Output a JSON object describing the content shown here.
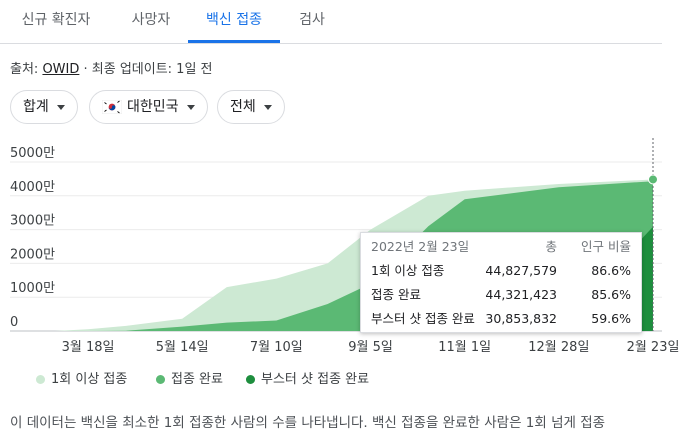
{
  "tabs": [
    {
      "label": "신규 확진자"
    },
    {
      "label": "사망자"
    },
    {
      "label": "백신 접종"
    },
    {
      "label": "검사"
    }
  ],
  "source": {
    "prefix": "출처: ",
    "name": "OWID",
    "suffix": " · 최종 업데이트: 1일 전"
  },
  "filters": {
    "measure": "합계",
    "country": "대한민국",
    "range": "전체"
  },
  "colors": {
    "first_dose": "#cde9d3",
    "fully": "#5bb974",
    "booster": "#1e8e3e",
    "accent": "#1a73e8"
  },
  "chart_data": {
    "type": "area",
    "x": [
      "2021-02-26",
      "2021-03-18",
      "2021-04-10",
      "2021-05-14",
      "2021-06-10",
      "2021-07-10",
      "2021-08-10",
      "2021-09-05",
      "2021-10-10",
      "2021-11-01",
      "2021-12-28",
      "2022-02-23"
    ],
    "x_tick_labels": [
      "3월 18일",
      "5월 14일",
      "7월 10일",
      "9월 5일",
      "11월 1일",
      "12월 28일",
      "2월 23일"
    ],
    "y_tick_labels": [
      "0",
      "1000만",
      "2000만",
      "3000만",
      "4000만",
      "5000만"
    ],
    "ylim": [
      0,
      50000000
    ],
    "series": [
      {
        "name": "1회 이상 접종",
        "values": [
          0,
          500000,
          1500000,
          3600000,
          13000000,
          15500000,
          20000000,
          30000000,
          40000000,
          41500000,
          43500000,
          44827579
        ]
      },
      {
        "name": "접종 완료",
        "values": [
          0,
          0,
          100000,
          1300000,
          2500000,
          3100000,
          8000000,
          14000000,
          31000000,
          39000000,
          42500000,
          44321423
        ]
      },
      {
        "name": "부스터 샷 접종 완료",
        "values": [
          0,
          0,
          0,
          0,
          0,
          0,
          0,
          0,
          0,
          0,
          1000000,
          30853832
        ]
      }
    ]
  },
  "tooltip": {
    "date": "2022년 2월 23일",
    "col_total": "총",
    "col_pct": "인구 비율",
    "rows": [
      {
        "label": "1회 이상 접종",
        "total": "44,827,579",
        "pct": "86.6%"
      },
      {
        "label": "접종 완료",
        "total": "44,321,423",
        "pct": "85.6%"
      },
      {
        "label": "부스터 샷 접종 완료",
        "total": "30,853,832",
        "pct": "59.6%"
      }
    ]
  },
  "legend": [
    "1회 이상 접종",
    "접종 완료",
    "부스터 샷 접종 완료"
  ],
  "note": "이 데이터는 백신을 최소한 1회 접종한 사람의 수를 나타냅니다. 백신 접종을 완료한 사람은 1회 넘게 접종"
}
